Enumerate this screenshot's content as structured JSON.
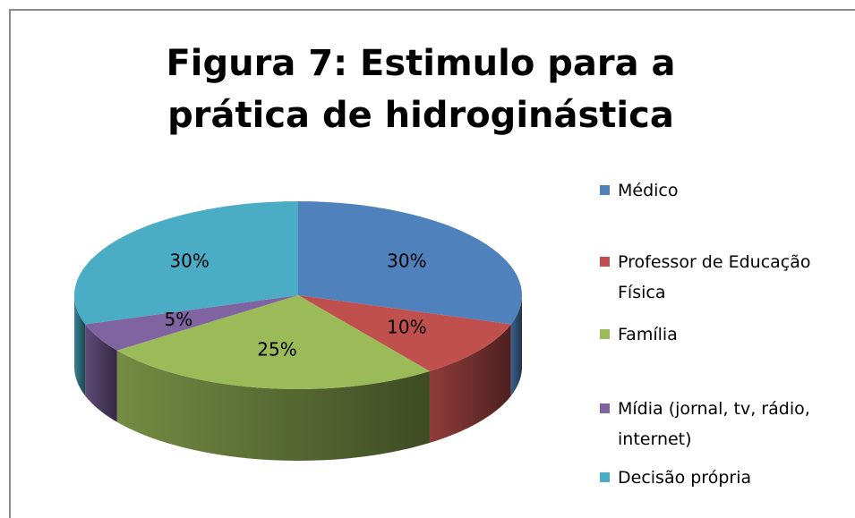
{
  "chart_data": {
    "type": "pie3d",
    "title": "Figura 7: Estimulo para a prática de hidroginástica",
    "categories": [
      "Médico",
      "Professor de Educação Física",
      "Família",
      "Mídia (jornal, tv, rádio, internet)",
      "Decisão própria"
    ],
    "values": [
      30,
      10,
      25,
      5,
      30
    ],
    "value_labels": [
      "30%",
      "10%",
      "25%",
      "5%",
      "30%"
    ],
    "colors": [
      "#4f81bd",
      "#c0504d",
      "#9bbb59",
      "#8064a2",
      "#4bacc6"
    ],
    "legend": "right"
  }
}
